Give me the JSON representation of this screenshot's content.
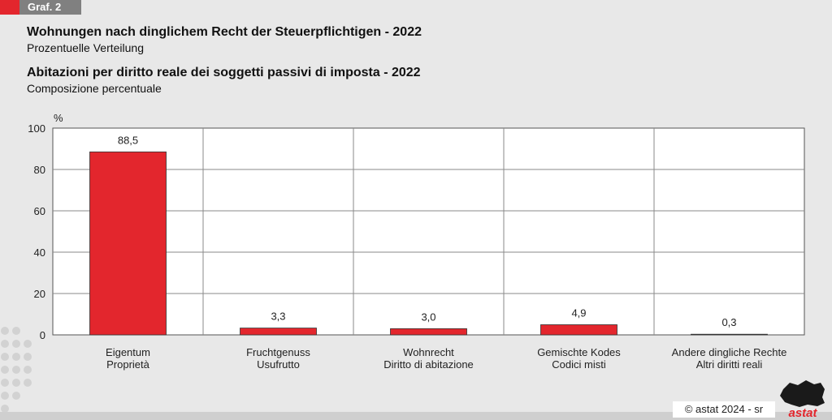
{
  "badge": "Graf. 2",
  "title_de": "Wohnungen nach dinglichem Recht der Steuerpflichtigen - 2022",
  "subtitle_de": "Prozentuelle Verteilung",
  "title_it": "Abitazioni per diritto reale dei soggetti passivi di imposta - 2022",
  "subtitle_it": "Composizione percentuale",
  "copyright": "©  astat 2024 - sr",
  "logo_text": "astat",
  "colors": {
    "bar": "#e3262d",
    "accent": "#e3262d",
    "badge_bg": "#808080"
  },
  "chart_data": {
    "type": "bar",
    "ylabel": "%",
    "ylim": [
      0,
      100
    ],
    "yticks": [
      0,
      20,
      40,
      60,
      80,
      100
    ],
    "grid": true,
    "categories": [
      [
        "Eigentum",
        "Proprietà"
      ],
      [
        "Fruchtgenuss",
        "Usufrutto"
      ],
      [
        "Wohnrecht",
        "Diritto di abitazione"
      ],
      [
        "Gemischte Kodes",
        "Codici misti"
      ],
      [
        "Andere dingliche Rechte",
        "Altri diritti reali"
      ]
    ],
    "values": [
      88.5,
      3.3,
      3.0,
      4.9,
      0.3
    ],
    "value_labels": [
      "88,5",
      "3,3",
      "3,0",
      "4,9",
      "0,3"
    ]
  }
}
